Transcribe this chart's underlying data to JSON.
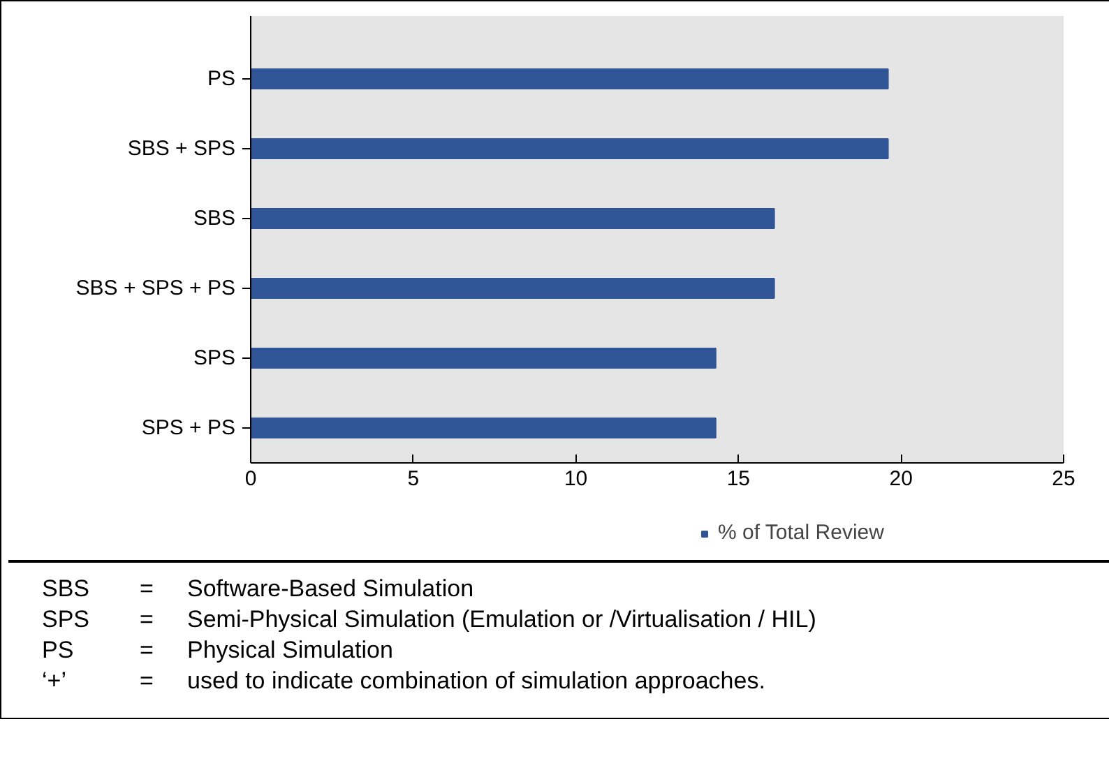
{
  "chart_data": {
    "type": "bar",
    "orientation": "horizontal",
    "categories": [
      "PS",
      "SBS + SPS",
      "SBS",
      "SBS + SPS + PS",
      "SPS",
      "SPS + PS"
    ],
    "series": [
      {
        "name": "% of Total Review",
        "color": "#2f5597",
        "values": [
          19.6,
          19.6,
          16.1,
          16.1,
          14.3,
          14.3
        ]
      }
    ],
    "xlim": [
      0,
      25
    ],
    "xticks": [
      0,
      5,
      10,
      15,
      20,
      25
    ],
    "grid": false,
    "legend": "bottom",
    "annotations": [
      "SBS = Software-Based Simulation",
      "SPS = Semi-Physical Simulation (Emulation or /Virtualisation / HIL)",
      "PS = Physical Simulation",
      "‘+’ = used to indicate combination of simulation approaches."
    ]
  }
}
